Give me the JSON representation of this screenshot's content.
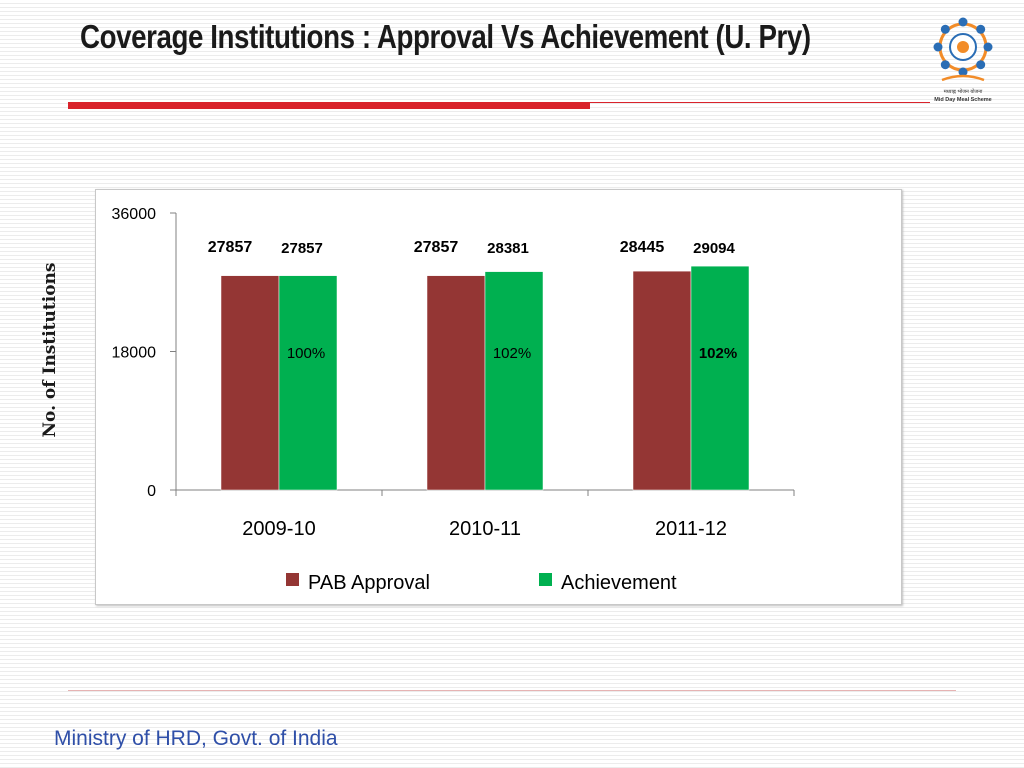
{
  "slide": {
    "title": "Coverage Institutions : Approval Vs Achievement (U. Pry)",
    "footer": "Ministry of HRD, Govt. of India",
    "logo": {
      "icon": "mid-day-meal-logo",
      "text_line1": "मध्याह्न भोजन योजना",
      "text_line2": "Mid Day Meal Scheme"
    }
  },
  "chart_data": {
    "type": "bar",
    "title": "",
    "xlabel": "",
    "ylabel": "No. of Institutions",
    "ylim": [
      0,
      36000
    ],
    "yticks": [
      "0",
      "18000",
      "36000"
    ],
    "categories": [
      "2009-10",
      "2010-11",
      "2011-12"
    ],
    "series": [
      {
        "name": "PAB Approval",
        "values": [
          27857,
          27857,
          28445
        ],
        "labels": [
          "27857",
          "27857",
          "28445"
        ],
        "color": "#943634"
      },
      {
        "name": "Achievement",
        "values": [
          27857,
          28381,
          29094
        ],
        "labels": [
          "27857",
          "28381",
          "29094"
        ],
        "color": "#00b050"
      }
    ],
    "percent_labels": [
      "100%",
      "102%",
      "102%"
    ],
    "legend": "bottom",
    "grid": false
  }
}
